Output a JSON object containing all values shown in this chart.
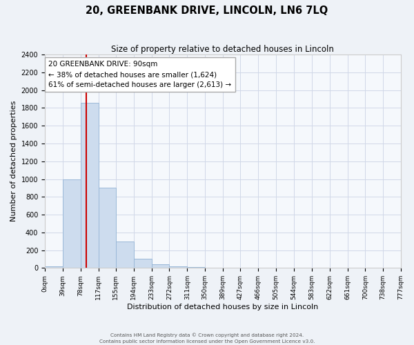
{
  "title": "20, GREENBANK DRIVE, LINCOLN, LN6 7LQ",
  "subtitle": "Size of property relative to detached houses in Lincoln",
  "xlabel": "Distribution of detached houses by size in Lincoln",
  "ylabel": "Number of detached properties",
  "bar_edges": [
    0,
    39,
    78,
    117,
    155,
    194,
    233,
    272,
    311,
    350,
    389,
    427,
    466,
    505,
    544,
    583,
    622,
    661,
    700,
    738,
    777
  ],
  "bar_heights": [
    20,
    1000,
    1860,
    900,
    300,
    100,
    45,
    20,
    10,
    5,
    0,
    0,
    0,
    0,
    0,
    0,
    0,
    0,
    0,
    0
  ],
  "tick_labels": [
    "0sqm",
    "39sqm",
    "78sqm",
    "117sqm",
    "155sqm",
    "194sqm",
    "233sqm",
    "272sqm",
    "311sqm",
    "350sqm",
    "389sqm",
    "427sqm",
    "466sqm",
    "505sqm",
    "544sqm",
    "583sqm",
    "622sqm",
    "661sqm",
    "700sqm",
    "738sqm",
    "777sqm"
  ],
  "bar_color": "#cddcee",
  "bar_edge_color": "#9ab8d8",
  "vline_x": 90,
  "vline_color": "#cc0000",
  "ylim": [
    0,
    2400
  ],
  "yticks": [
    0,
    200,
    400,
    600,
    800,
    1000,
    1200,
    1400,
    1600,
    1800,
    2000,
    2200,
    2400
  ],
  "annotation_title": "20 GREENBANK DRIVE: 90sqm",
  "annotation_line1": "← 38% of detached houses are smaller (1,624)",
  "annotation_line2": "61% of semi-detached houses are larger (2,613) →",
  "annotation_box_color": "#ffffff",
  "annotation_box_edge": "#aaaaaa",
  "footer1": "Contains HM Land Registry data © Crown copyright and database right 2024.",
  "footer2": "Contains public sector information licensed under the Open Government Licence v3.0.",
  "bg_color": "#eef2f7",
  "plot_bg_color": "#f5f8fc",
  "grid_color": "#d0d8e8"
}
